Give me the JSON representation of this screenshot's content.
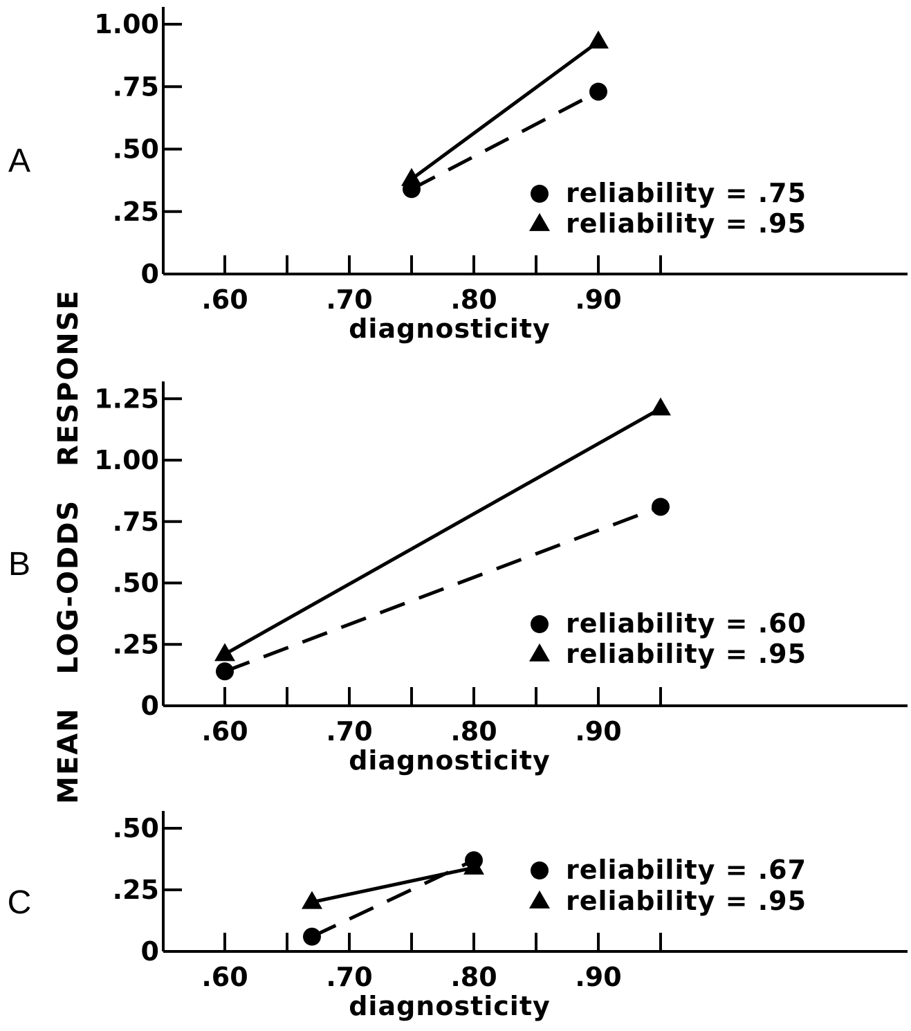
{
  "chart_data": [
    {
      "type": "line",
      "panel": "A",
      "xlabel": "diagnosticity",
      "xticks": [
        ".60",
        ".70",
        ".80",
        ".90"
      ],
      "yticks": [
        "0",
        ".25",
        ".50",
        ".75",
        "1.00"
      ],
      "xlim": [
        0.55,
        1.05
      ],
      "ylim": [
        0,
        1.0
      ],
      "series": [
        {
          "name": "reliability = .75",
          "marker": "circle",
          "line": "dashed",
          "x": [
            0.75,
            0.9
          ],
          "y": [
            0.34,
            0.73
          ]
        },
        {
          "name": "reliability = .95",
          "marker": "triangle",
          "line": "solid",
          "x": [
            0.75,
            0.9
          ],
          "y": [
            0.38,
            0.93
          ]
        }
      ]
    },
    {
      "type": "line",
      "panel": "B",
      "xlabel": "diagnosticity",
      "xticks": [
        ".60",
        ".70",
        ".80",
        ".90"
      ],
      "yticks": [
        "0",
        ".25",
        ".50",
        ".75",
        "1.00",
        "1.25"
      ],
      "xlim": [
        0.55,
        1.05
      ],
      "ylim": [
        0,
        1.25
      ],
      "series": [
        {
          "name": "reliability = .60",
          "marker": "circle",
          "line": "dashed",
          "x": [
            0.6,
            0.95
          ],
          "y": [
            0.14,
            0.81
          ]
        },
        {
          "name": "reliability = .95",
          "marker": "triangle",
          "line": "solid",
          "x": [
            0.6,
            0.95
          ],
          "y": [
            0.21,
            1.21
          ]
        }
      ]
    },
    {
      "type": "line",
      "panel": "C",
      "xlabel": "diagnosticity",
      "xticks": [
        ".60",
        ".70",
        ".80",
        ".90"
      ],
      "yticks": [
        "0",
        ".25",
        ".50"
      ],
      "xlim": [
        0.55,
        1.05
      ],
      "ylim": [
        0,
        0.5
      ],
      "series": [
        {
          "name": "reliability = .67",
          "marker": "circle",
          "line": "dashed",
          "x": [
            0.67,
            0.8
          ],
          "y": [
            0.06,
            0.37
          ]
        },
        {
          "name": "reliability = .95",
          "marker": "triangle",
          "line": "solid",
          "x": [
            0.67,
            0.8
          ],
          "y": [
            0.2,
            0.34
          ]
        }
      ]
    }
  ],
  "ylabel_shared": "MEAN   LOG-ODDS   RESPONSE"
}
